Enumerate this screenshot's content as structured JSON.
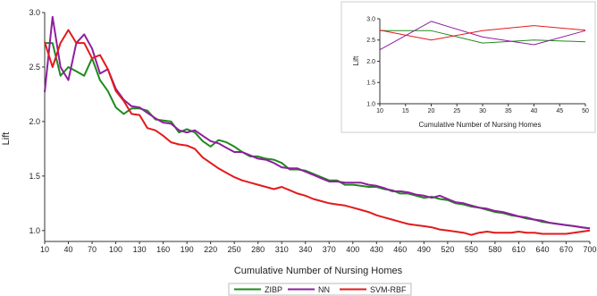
{
  "chart_data": [
    {
      "type": "line",
      "xlabel": "Cumulative Number of Nursing Homes",
      "ylabel": "Lift",
      "xlim": [
        10,
        700
      ],
      "ylim": [
        0.9,
        3.0
      ],
      "xticks": [
        10,
        40,
        70,
        100,
        130,
        160,
        190,
        220,
        250,
        280,
        310,
        340,
        370,
        400,
        430,
        460,
        490,
        520,
        550,
        580,
        610,
        640,
        670,
        700
      ],
      "yticks": [
        "1.0",
        "1.5",
        "2.0",
        "2.5",
        "3.0"
      ],
      "legend_position": "bottom",
      "grid": false,
      "series": [
        {
          "name": "ZIBP",
          "color": "#1f8a1f",
          "x": [
            10,
            20,
            30,
            40,
            50,
            60,
            70,
            80,
            90,
            100,
            110,
            120,
            130,
            140,
            150,
            160,
            170,
            180,
            190,
            200,
            210,
            220,
            230,
            240,
            250,
            260,
            270,
            280,
            290,
            300,
            310,
            320,
            330,
            340,
            350,
            360,
            370,
            380,
            390,
            400,
            410,
            420,
            430,
            440,
            450,
            460,
            470,
            480,
            490,
            500,
            510,
            520,
            530,
            540,
            550,
            560,
            570,
            580,
            590,
            600,
            610,
            620,
            630,
            640,
            650,
            660,
            670,
            680,
            690,
            700
          ],
          "values": [
            2.72,
            2.72,
            2.42,
            2.5,
            2.46,
            2.42,
            2.58,
            2.38,
            2.28,
            2.13,
            2.07,
            2.12,
            2.12,
            2.1,
            2.02,
            2.01,
            2.0,
            1.9,
            1.93,
            1.9,
            1.82,
            1.77,
            1.83,
            1.81,
            1.77,
            1.72,
            1.68,
            1.68,
            1.66,
            1.65,
            1.62,
            1.56,
            1.56,
            1.55,
            1.52,
            1.49,
            1.46,
            1.46,
            1.42,
            1.42,
            1.41,
            1.4,
            1.4,
            1.38,
            1.37,
            1.34,
            1.34,
            1.32,
            1.3,
            1.31,
            1.29,
            1.28,
            1.25,
            1.24,
            1.22,
            1.21,
            1.19,
            1.17,
            1.16,
            1.14,
            1.13,
            1.11,
            1.1,
            1.08,
            1.07,
            1.06,
            1.05,
            1.04,
            1.03,
            1.02
          ]
        },
        {
          "name": "NN",
          "color": "#8e1f9e",
          "x": [
            10,
            20,
            30,
            40,
            50,
            60,
            70,
            80,
            90,
            100,
            110,
            120,
            130,
            140,
            150,
            160,
            170,
            180,
            190,
            200,
            210,
            220,
            230,
            240,
            250,
            260,
            270,
            280,
            290,
            300,
            310,
            320,
            330,
            340,
            350,
            360,
            370,
            380,
            390,
            400,
            410,
            420,
            430,
            440,
            450,
            460,
            470,
            480,
            490,
            500,
            510,
            520,
            530,
            540,
            550,
            560,
            570,
            580,
            590,
            600,
            610,
            620,
            630,
            640,
            650,
            660,
            670,
            680,
            690,
            700
          ],
          "values": [
            2.27,
            2.96,
            2.5,
            2.38,
            2.72,
            2.8,
            2.67,
            2.44,
            2.48,
            2.3,
            2.2,
            2.14,
            2.13,
            2.08,
            2.03,
            1.99,
            1.98,
            1.92,
            1.9,
            1.92,
            1.87,
            1.82,
            1.8,
            1.76,
            1.72,
            1.72,
            1.69,
            1.66,
            1.65,
            1.62,
            1.58,
            1.57,
            1.57,
            1.54,
            1.51,
            1.48,
            1.45,
            1.45,
            1.44,
            1.44,
            1.44,
            1.42,
            1.41,
            1.39,
            1.36,
            1.36,
            1.35,
            1.33,
            1.32,
            1.3,
            1.32,
            1.29,
            1.26,
            1.25,
            1.23,
            1.21,
            1.2,
            1.18,
            1.17,
            1.15,
            1.13,
            1.12,
            1.1,
            1.09,
            1.07,
            1.06,
            1.05,
            1.04,
            1.03,
            1.02
          ]
        },
        {
          "name": "SVM-RBF",
          "color": "#e31a1c",
          "x": [
            10,
            20,
            30,
            40,
            50,
            60,
            70,
            80,
            90,
            100,
            110,
            120,
            130,
            140,
            150,
            160,
            170,
            180,
            190,
            200,
            210,
            220,
            230,
            240,
            250,
            260,
            270,
            280,
            290,
            300,
            310,
            320,
            330,
            340,
            350,
            360,
            370,
            380,
            390,
            400,
            410,
            420,
            430,
            440,
            450,
            460,
            470,
            480,
            490,
            500,
            510,
            520,
            530,
            540,
            550,
            560,
            570,
            580,
            590,
            600,
            610,
            620,
            630,
            640,
            650,
            660,
            670,
            680,
            690,
            700
          ],
          "values": [
            2.73,
            2.5,
            2.72,
            2.84,
            2.72,
            2.72,
            2.58,
            2.61,
            2.48,
            2.28,
            2.19,
            2.07,
            2.06,
            1.94,
            1.92,
            1.87,
            1.81,
            1.79,
            1.78,
            1.75,
            1.67,
            1.62,
            1.57,
            1.53,
            1.49,
            1.46,
            1.44,
            1.42,
            1.4,
            1.38,
            1.4,
            1.37,
            1.34,
            1.32,
            1.29,
            1.27,
            1.25,
            1.24,
            1.23,
            1.21,
            1.19,
            1.17,
            1.14,
            1.12,
            1.1,
            1.08,
            1.06,
            1.05,
            1.04,
            1.03,
            1.01,
            1.0,
            0.99,
            0.98,
            0.96,
            0.98,
            0.99,
            0.98,
            0.98,
            0.98,
            0.99,
            0.98,
            0.98,
            0.97,
            0.97,
            0.97,
            0.97,
            0.98,
            0.99,
            1.0
          ]
        }
      ]
    },
    {
      "type": "line",
      "xlabel": "Cumulative Number of Nursing Homes",
      "ylabel": "Lift",
      "xlim": [
        10,
        50
      ],
      "ylim": [
        1.0,
        3.0
      ],
      "xticks": [
        10,
        15,
        20,
        25,
        30,
        35,
        40,
        45,
        50
      ],
      "yticks": [
        "1.0",
        "1.5",
        "2.0",
        "2.5",
        "3.0"
      ],
      "grid": false,
      "series": [
        {
          "name": "ZIBP",
          "color": "#1f8a1f",
          "x": [
            10,
            20,
            30,
            40,
            50
          ],
          "values": [
            2.72,
            2.72,
            2.43,
            2.5,
            2.46
          ]
        },
        {
          "name": "NN",
          "color": "#8e1f9e",
          "x": [
            10,
            20,
            30,
            40,
            50
          ],
          "values": [
            2.27,
            2.94,
            2.57,
            2.39,
            2.72
          ]
        },
        {
          "name": "SVM-RBF",
          "color": "#e31a1c",
          "x": [
            10,
            20,
            30,
            40,
            50
          ],
          "values": [
            2.73,
            2.5,
            2.72,
            2.84,
            2.73
          ]
        }
      ]
    }
  ]
}
